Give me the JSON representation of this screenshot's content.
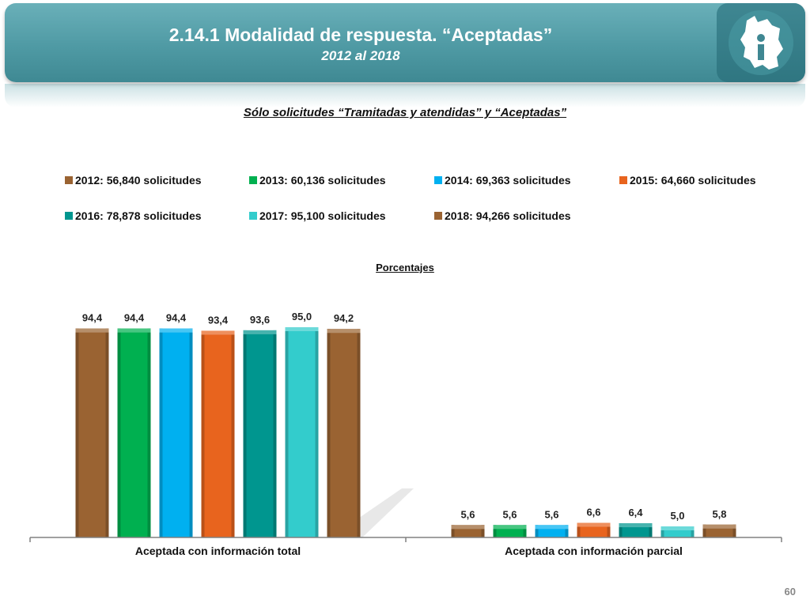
{
  "header": {
    "title": "2.14.1 Modalidad de respuesta. “Aceptadas”",
    "subtitle": "2012 al 2018",
    "logo": "cdmx-map-info-icon"
  },
  "section_title": "Sólo solicitudes “Tramitadas y atendidas” y “Aceptadas”",
  "page_number": "60",
  "colors": {
    "banner": "#4f9aa4",
    "s2012": "#9a6332",
    "s2013": "#00b050",
    "s2014": "#00b0f0",
    "s2015": "#e8641e",
    "s2016": "#00968f",
    "s2017": "#33cccc",
    "s2018": "#9a6332"
  },
  "chart_data": {
    "type": "bar",
    "title": "Porcentajes",
    "xlabel": "",
    "ylabel": "",
    "ylim": [
      0,
      100
    ],
    "grid": false,
    "legend": "top",
    "categories": [
      "Aceptada con información total",
      "Aceptada con información parcial"
    ],
    "series": [
      {
        "name": "2012: 56,840 solicitudes",
        "values": [
          94.4,
          5.6
        ],
        "labels": [
          "94,4",
          "5,6"
        ],
        "color": "#9a6332"
      },
      {
        "name": "2013: 60,136 solicitudes",
        "values": [
          94.4,
          5.6
        ],
        "labels": [
          "94,4",
          "5,6"
        ],
        "color": "#00b050"
      },
      {
        "name": "2014: 69,363 solicitudes",
        "values": [
          94.4,
          5.6
        ],
        "labels": [
          "94,4",
          "5,6"
        ],
        "color": "#00b0f0"
      },
      {
        "name": "2015: 64,660 solicitudes",
        "values": [
          93.4,
          6.6
        ],
        "labels": [
          "93,4",
          "6,6"
        ],
        "color": "#e8641e"
      },
      {
        "name": "2016: 78,878 solicitudes",
        "values": [
          93.6,
          6.4
        ],
        "labels": [
          "93,6",
          "6,4"
        ],
        "color": "#00968f"
      },
      {
        "name": "2017: 95,100 solicitudes",
        "values": [
          95.0,
          5.0
        ],
        "labels": [
          "95,0",
          "5,0"
        ],
        "color": "#33cccc"
      },
      {
        "name": "2018: 94,266 solicitudes",
        "values": [
          94.2,
          5.8
        ],
        "labels": [
          "94,2",
          "5,8"
        ],
        "color": "#9a6332"
      }
    ]
  }
}
